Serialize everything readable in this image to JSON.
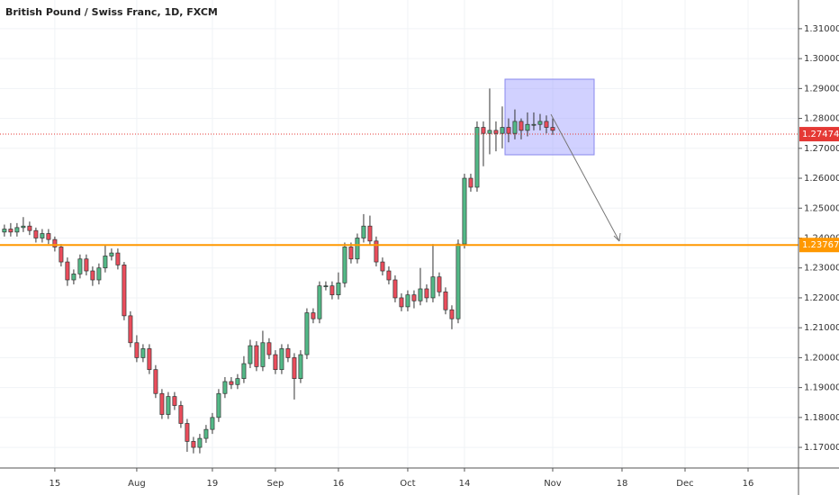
{
  "chart_data": {
    "type": "candlestick",
    "title": "British Pound / Swiss Franc, 1D, FXCM",
    "open": [
      1.242,
      1.243,
      1.242,
      1.2435,
      1.244,
      1.2425,
      1.24,
      1.2415,
      1.2395,
      1.237,
      1.232,
      1.226,
      1.228,
      1.233,
      1.229,
      1.226,
      1.23,
      1.234,
      1.235,
      1.231,
      1.214,
      1.205,
      1.2,
      1.203,
      1.196,
      1.188,
      1.181,
      1.187,
      1.184,
      1.178,
      1.172,
      1.17,
      1.173,
      1.176,
      1.18,
      1.188,
      1.192,
      1.191,
      1.193,
      1.198,
      1.204,
      1.197,
      1.205,
      1.201,
      1.196,
      1.203,
      1.2,
      1.193,
      1.201,
      1.215,
      1.213,
      1.224,
      1.224,
      1.221,
      1.225,
      1.237,
      1.233,
      1.24,
      1.244,
      1.239,
      1.232,
      1.229,
      1.226,
      1.22,
      1.217,
      1.221,
      1.219,
      1.223,
      1.22,
      1.227,
      1.222,
      1.216,
      1.213,
      1.238,
      1.26,
      1.257,
      1.277,
      1.275,
      1.276,
      1.275,
      1.277,
      1.275,
      1.279,
      1.276,
      1.278,
      1.278,
      1.279,
      1.277
    ],
    "high": [
      1.2445,
      1.245,
      1.245,
      1.247,
      1.2455,
      1.2435,
      1.243,
      1.243,
      1.2405,
      1.238,
      1.2335,
      1.2295,
      1.2345,
      1.2345,
      1.2305,
      1.2315,
      1.2375,
      1.2365,
      1.2365,
      1.232,
      1.2155,
      1.2075,
      1.2045,
      1.2045,
      1.1975,
      1.1895,
      1.1885,
      1.1885,
      1.1855,
      1.1795,
      1.1735,
      1.1745,
      1.1775,
      1.1815,
      1.1895,
      1.1935,
      1.1935,
      1.1945,
      1.2005,
      1.206,
      1.2055,
      1.209,
      1.2065,
      1.2025,
      1.2045,
      1.2045,
      1.2015,
      1.2025,
      1.2165,
      1.2165,
      1.2255,
      1.2255,
      1.2255,
      1.2285,
      1.2385,
      1.2385,
      1.2415,
      1.248,
      1.2475,
      1.2405,
      1.2335,
      1.2305,
      1.2275,
      1.2215,
      1.2225,
      1.2225,
      1.23,
      1.2245,
      1.238,
      1.2285,
      1.2235,
      1.2175,
      1.2395,
      1.2615,
      1.2615,
      1.279,
      1.279,
      1.29,
      1.279,
      1.284,
      1.28,
      1.283,
      1.28,
      1.282,
      1.282,
      1.2815,
      1.281,
      1.28
    ],
    "low": [
      1.2405,
      1.2405,
      1.2405,
      1.242,
      1.241,
      1.2385,
      1.2385,
      1.238,
      1.2355,
      1.2305,
      1.224,
      1.2245,
      1.2265,
      1.2275,
      1.224,
      1.2245,
      1.2285,
      1.2325,
      1.2295,
      1.2125,
      1.2035,
      1.1985,
      1.1985,
      1.1945,
      1.1865,
      1.1795,
      1.1795,
      1.1825,
      1.1765,
      1.1685,
      1.168,
      1.168,
      1.1715,
      1.1745,
      1.1785,
      1.1865,
      1.1895,
      1.1895,
      1.1915,
      1.1965,
      1.1955,
      1.1955,
      1.1995,
      1.1945,
      1.1945,
      1.1985,
      1.186,
      1.1915,
      1.1995,
      1.2115,
      1.2115,
      1.2225,
      1.2195,
      1.2195,
      1.2235,
      1.2315,
      1.2315,
      1.2385,
      1.2375,
      1.2305,
      1.2275,
      1.2245,
      1.2185,
      1.2155,
      1.2155,
      1.2165,
      1.2175,
      1.2185,
      1.2185,
      1.2205,
      1.2145,
      1.2095,
      1.2115,
      1.2365,
      1.2555,
      1.2555,
      1.264,
      1.268,
      1.269,
      1.27,
      1.272,
      1.273,
      1.273,
      1.274,
      1.276,
      1.276,
      1.275,
      1.2745
    ],
    "close": [
      1.243,
      1.242,
      1.2435,
      1.244,
      1.2425,
      1.24,
      1.2415,
      1.2395,
      1.237,
      1.232,
      1.226,
      1.228,
      1.233,
      1.229,
      1.226,
      1.23,
      1.234,
      1.235,
      1.231,
      1.214,
      1.205,
      1.2,
      1.203,
      1.196,
      1.188,
      1.181,
      1.187,
      1.184,
      1.178,
      1.172,
      1.17,
      1.173,
      1.176,
      1.18,
      1.188,
      1.192,
      1.191,
      1.193,
      1.198,
      1.204,
      1.197,
      1.205,
      1.201,
      1.196,
      1.203,
      1.2,
      1.193,
      1.201,
      1.215,
      1.213,
      1.224,
      1.224,
      1.221,
      1.225,
      1.237,
      1.233,
      1.24,
      1.244,
      1.239,
      1.232,
      1.229,
      1.226,
      1.22,
      1.217,
      1.221,
      1.219,
      1.223,
      1.22,
      1.227,
      1.222,
      1.216,
      1.213,
      1.238,
      1.26,
      1.257,
      1.277,
      1.275,
      1.276,
      1.275,
      1.277,
      1.275,
      1.279,
      1.276,
      1.278,
      1.278,
      1.279,
      1.277,
      1.276
    ],
    "up_color": "#53b987",
    "down_color": "#eb4d5c",
    "xlim": [
      -0.7,
      126
    ],
    "xticks": [
      {
        "value": 8,
        "label": "15"
      },
      {
        "value": 21,
        "label": "Aug"
      },
      {
        "value": 33,
        "label": "19"
      },
      {
        "value": 43,
        "label": "Sep"
      },
      {
        "value": 53,
        "label": "16"
      },
      {
        "value": 64,
        "label": "Oct"
      },
      {
        "value": 73,
        "label": "14"
      },
      {
        "value": 87,
        "label": "Nov"
      },
      {
        "value": 98,
        "label": "18"
      },
      {
        "value": 108,
        "label": "Dec"
      },
      {
        "value": 118,
        "label": "16"
      }
    ],
    "ylim": [
      1.1631,
      1.3196
    ],
    "yticks": [
      {
        "value": 1.17,
        "label": "1.17000"
      },
      {
        "value": 1.18,
        "label": "1.18000"
      },
      {
        "value": 1.19,
        "label": "1.19000"
      },
      {
        "value": 1.2,
        "label": "1.20000"
      },
      {
        "value": 1.21,
        "label": "1.21000"
      },
      {
        "value": 1.22,
        "label": "1.22000"
      },
      {
        "value": 1.23,
        "label": "1.23000"
      },
      {
        "value": 1.24,
        "label": "1.24000"
      },
      {
        "value": 1.25,
        "label": "1.25000"
      },
      {
        "value": 1.26,
        "label": "1.26000"
      },
      {
        "value": 1.27,
        "label": "1.27000"
      },
      {
        "value": 1.28,
        "label": "1.28000"
      },
      {
        "value": 1.29,
        "label": "1.29000"
      },
      {
        "value": 1.3,
        "label": "1.30000"
      },
      {
        "value": 1.31,
        "label": "1.31000"
      }
    ],
    "lines": [
      {
        "value": 1.23767,
        "label": "1.23767",
        "color": "#ff9800",
        "style": "solid"
      },
      {
        "value": 1.27474,
        "label": "1.27474",
        "color": "#e53935",
        "style": "dotted"
      }
    ]
  }
}
